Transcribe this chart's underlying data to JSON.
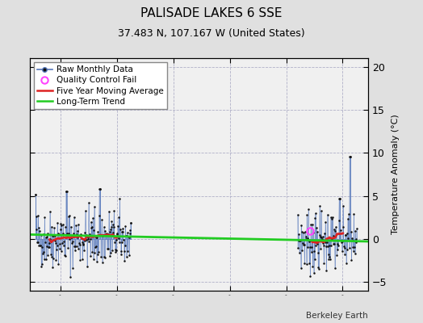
{
  "title": "PALISADE LAKES 6 SSE",
  "subtitle": "37.483 N, 107.167 W (United States)",
  "ylabel": "Temperature Anomaly (°C)",
  "attribution": "Berkeley Earth",
  "xlim": [
    1914.5,
    1974.5
  ],
  "ylim": [
    -6,
    21
  ],
  "yticks": [
    -5,
    0,
    5,
    10,
    15,
    20
  ],
  "xticks": [
    1920,
    1930,
    1940,
    1950,
    1960,
    1970
  ],
  "bg_color": "#e0e0e0",
  "plot_bg_color": "#f0f0f0",
  "grid_color": "#b0b0c8",
  "raw_line_color": "#5577bb",
  "raw_dot_color": "#111111",
  "moving_avg_color": "#dd2222",
  "trend_color": "#22cc22",
  "qc_fail_color": "#ff44ff",
  "title_fontsize": 11,
  "subtitle_fontsize": 9,
  "tick_fontsize": 9,
  "ylabel_fontsize": 8,
  "legend_fontsize": 7.5,
  "seg1_start": 1915.5,
  "seg1_end": 1932.5,
  "seg2_start": 1962.0,
  "seg2_end": 1972.5,
  "seg1_n": 204,
  "seg2_n": 126,
  "spike1_year": 1915.5,
  "spike1_val": 5.2,
  "spike2_year": 1921.0,
  "spike2_val": 5.5,
  "spike3_year": 1927.0,
  "spike3_val": 5.8,
  "spike4_year": 1971.3,
  "spike4_val": 9.6,
  "spike5_year": 1969.5,
  "spike5_val": 4.7,
  "qc_year": 1964.2,
  "qc_val": 0.9,
  "trend_x0": 1914.5,
  "trend_y0": 0.52,
  "trend_x1": 1974.5,
  "trend_y1": -0.28,
  "mean1": 0.05,
  "std1": 1.7,
  "mean2": -0.2,
  "std2": 1.8
}
